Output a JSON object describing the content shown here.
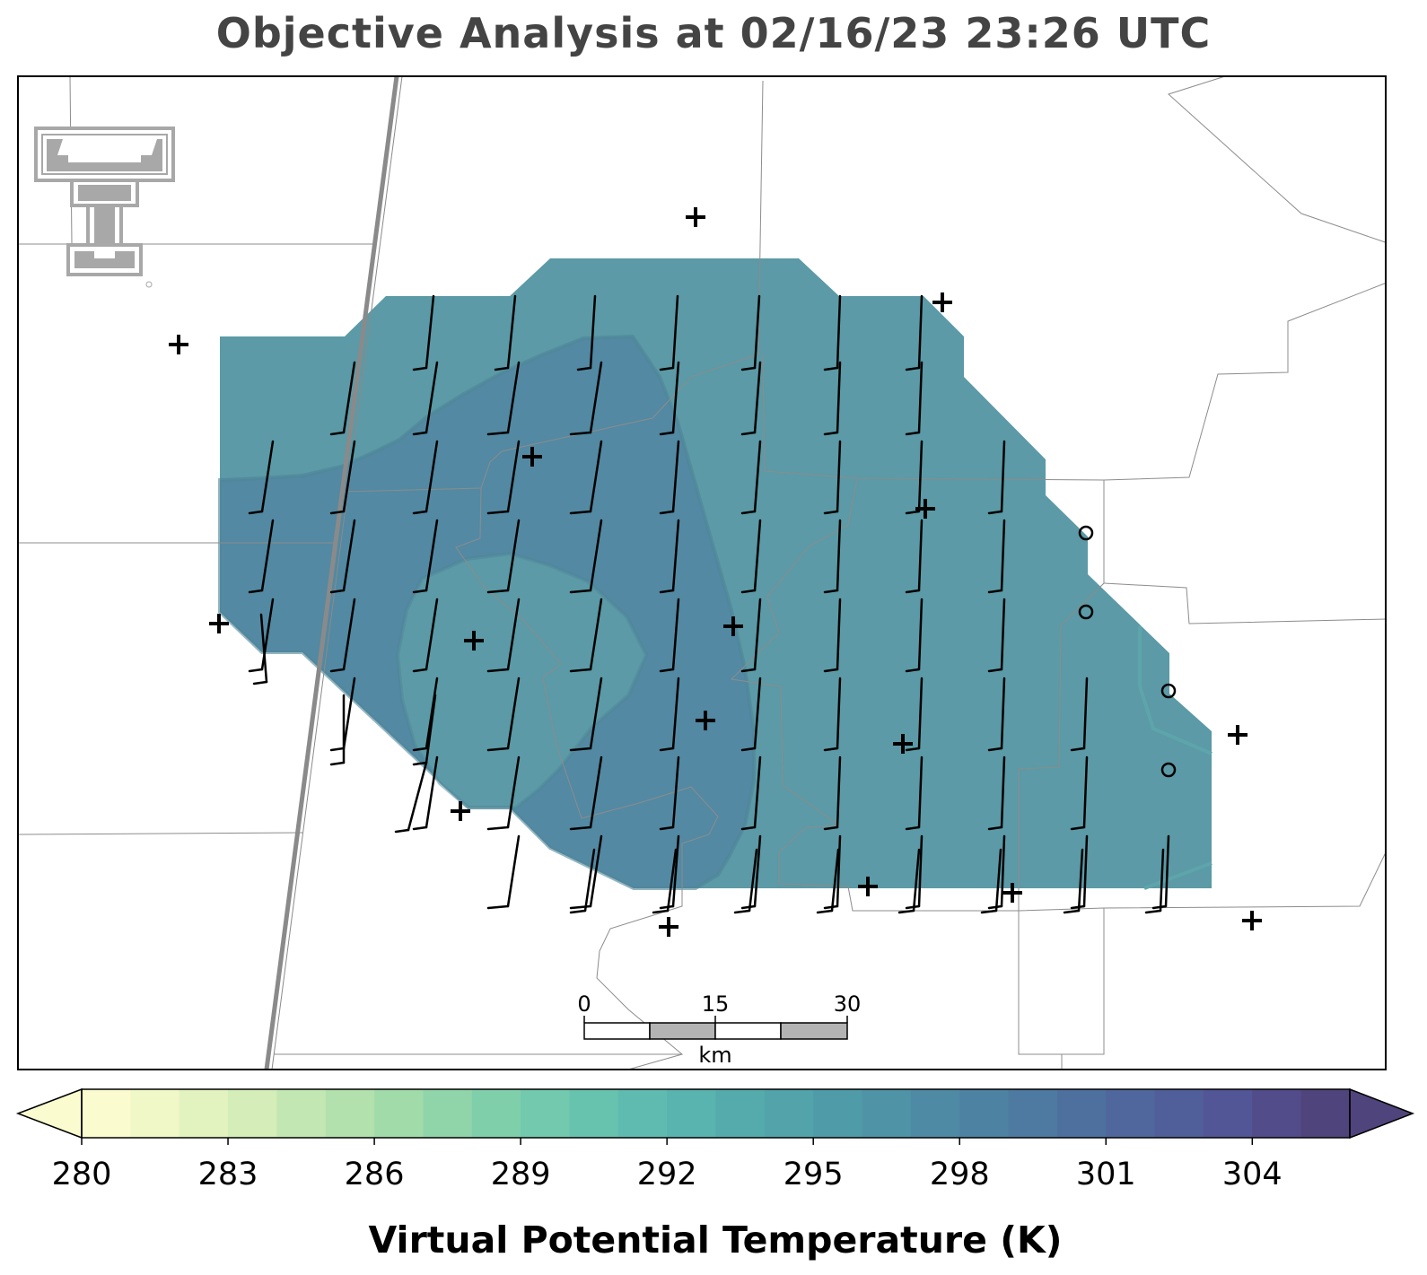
{
  "title": "Objective Analysis at 02/16/23 23:26 UTC",
  "colorbar": {
    "label": "Virtual Potential Temperature (K)",
    "ticks": [
      "280",
      "283",
      "286",
      "289",
      "292",
      "295",
      "298",
      "301",
      "304"
    ],
    "min": 280,
    "max": 306,
    "colors": [
      "#fafbce",
      "#f0f8c8",
      "#e3f3c0",
      "#d4edb9",
      "#c3e7b2",
      "#b2e1ad",
      "#a1dbaa",
      "#90d5aa",
      "#80cfab",
      "#72c9ad",
      "#67c2ae",
      "#5fbbaf",
      "#59b3ae",
      "#55abac",
      "#52a3aa",
      "#509ba8",
      "#4f93a6",
      "#4e8aa4",
      "#4e82a2",
      "#4e79a0",
      "#4e709e",
      "#4f679c",
      "#505e99",
      "#525596",
      "#524c8a",
      "#50447c"
    ]
  },
  "scale_bar": {
    "labels": [
      "0",
      "15",
      "30"
    ],
    "unit": "km"
  },
  "logo": {
    "name": "Texas Tech Double T"
  },
  "field": {
    "outer_contour_level_K": 295,
    "inner_contour_level_K": 297,
    "outer_fill": "#5b9aa6",
    "inner_fill": "#5389a2"
  },
  "wind_barbs": {
    "count": 95,
    "direction_from": "south to south-southwest",
    "barb_type": "short flags"
  },
  "stations": {
    "plus_markers": 15,
    "circle_markers": 4
  }
}
